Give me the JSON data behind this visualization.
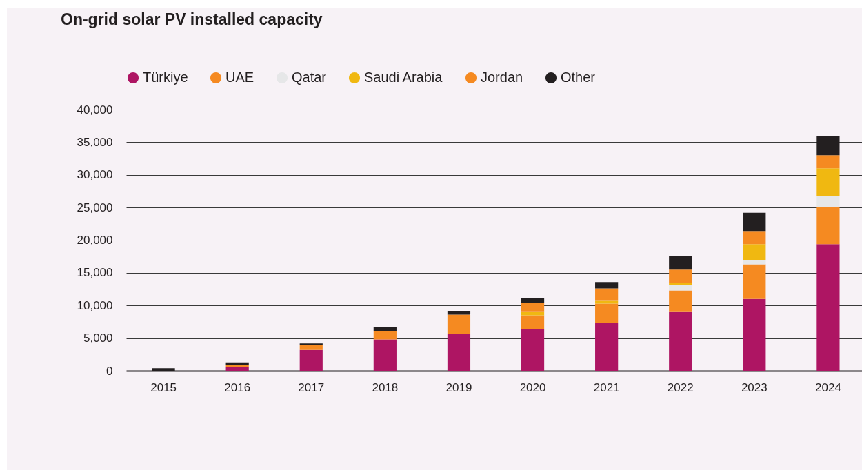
{
  "chart_data": {
    "type": "bar",
    "title": "On-grid solar PV installed capacity",
    "stacked": true,
    "categories": [
      "2015",
      "2016",
      "2017",
      "2018",
      "2019",
      "2020",
      "2021",
      "2022",
      "2023",
      "2024"
    ],
    "series": [
      {
        "name": "Türkiye",
        "color": "#ae1563",
        "values": [
          0,
          600,
          3200,
          4800,
          5700,
          6400,
          7400,
          9000,
          11000,
          19400
        ]
      },
      {
        "name": "UAE",
        "color": "#f58a21",
        "values": [
          0,
          300,
          700,
          1300,
          2900,
          2100,
          2900,
          3300,
          5300,
          5700
        ]
      },
      {
        "name": "Qatar",
        "color": "#e6e7e8",
        "values": [
          0,
          0,
          0,
          0,
          0,
          0,
          0,
          800,
          700,
          1700
        ]
      },
      {
        "name": "Saudi Arabia",
        "color": "#f0b811",
        "values": [
          0,
          0,
          0,
          0,
          0,
          500,
          400,
          400,
          2400,
          4200
        ]
      },
      {
        "name": "Jordan",
        "color": "#f58a21",
        "values": [
          0,
          0,
          0,
          0,
          0,
          1400,
          1900,
          2000,
          2000,
          2000
        ]
      },
      {
        "name": "Other",
        "color": "#231f20",
        "values": [
          400,
          300,
          300,
          600,
          500,
          800,
          1000,
          2100,
          2800,
          2900
        ]
      }
    ],
    "ylim": [
      0,
      40000
    ],
    "yticks": [
      0,
      {
        "value": 5000,
        "label": "5,000"
      },
      {
        "value": 10000,
        "label": "10,000"
      },
      {
        "value": 15000,
        "label": "15,000"
      },
      {
        "value": 20000,
        "label": "20,000"
      },
      {
        "value": 25000,
        "label": "25,000"
      },
      {
        "value": 30000,
        "label": "30,000"
      },
      {
        "value": 35000,
        "label": "35,000"
      },
      {
        "value": 40000,
        "label": "40,000"
      }
    ],
    "grid": "y",
    "legend": "top left"
  }
}
